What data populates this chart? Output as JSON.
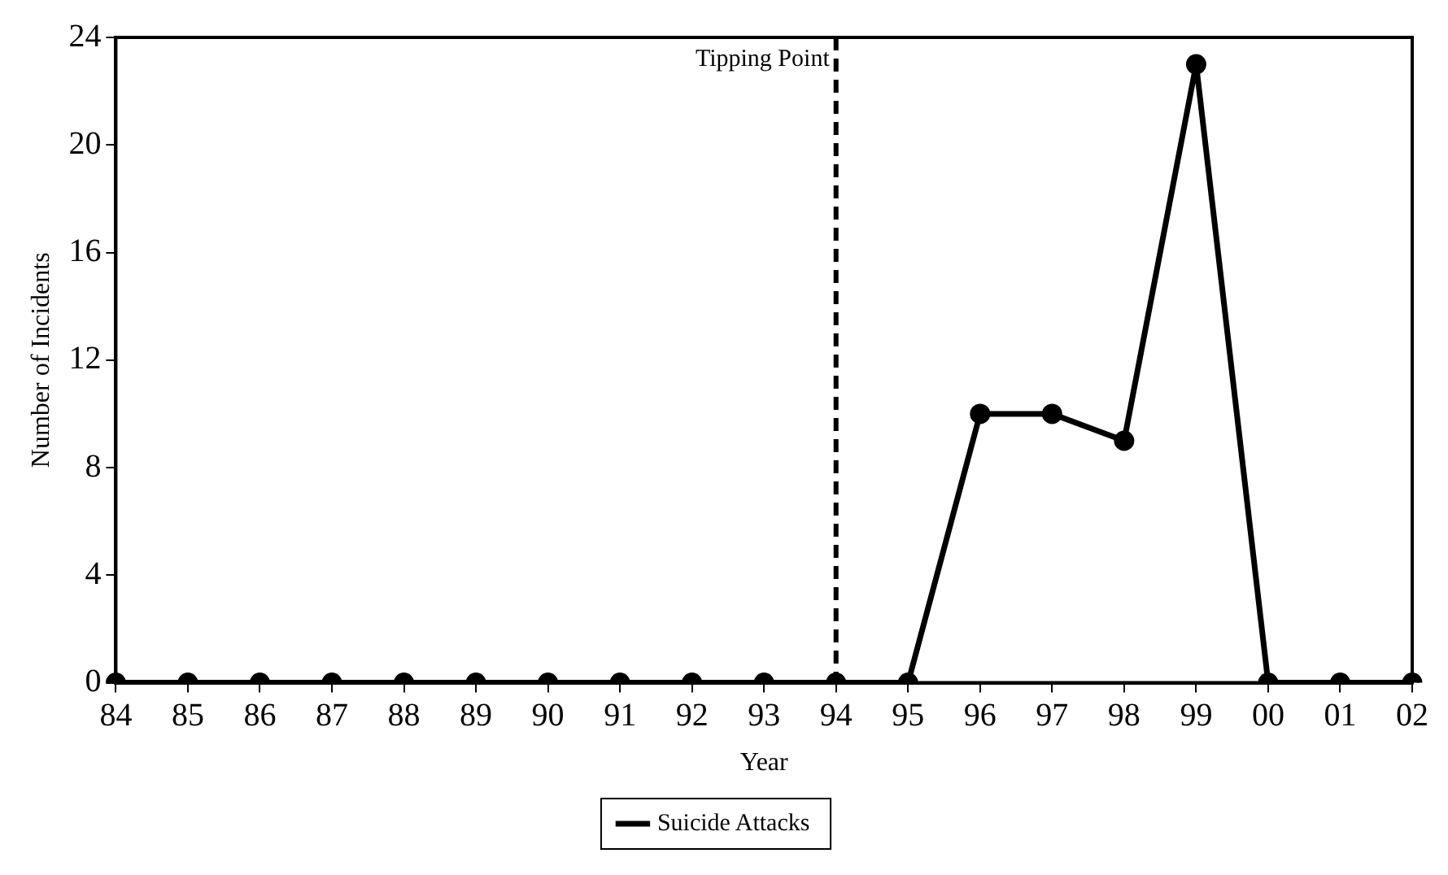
{
  "chart_data": {
    "type": "line",
    "xlabel": "Year",
    "ylabel": "Number of Incidents",
    "categories": [
      "84",
      "85",
      "86",
      "87",
      "88",
      "89",
      "90",
      "91",
      "92",
      "93",
      "94",
      "95",
      "96",
      "97",
      "98",
      "99",
      "00",
      "01",
      "02"
    ],
    "series": [
      {
        "name": "Suicide Attacks",
        "color": "#000000",
        "values": [
          0,
          0,
          0,
          0,
          0,
          0,
          0,
          0,
          0,
          0,
          0,
          0,
          10,
          10,
          9,
          23,
          0,
          0,
          0
        ]
      }
    ],
    "ylim": [
      0,
      24
    ],
    "yticks": [
      0,
      4,
      8,
      12,
      16,
      20,
      24
    ],
    "grid": false,
    "legend": "bottom",
    "marker": "circle",
    "line_style": "solid",
    "ref_lines": [
      {
        "axis": "x",
        "value": "94",
        "label": "Tipping Point",
        "line_style": "dashed",
        "color": "#000000"
      }
    ]
  }
}
